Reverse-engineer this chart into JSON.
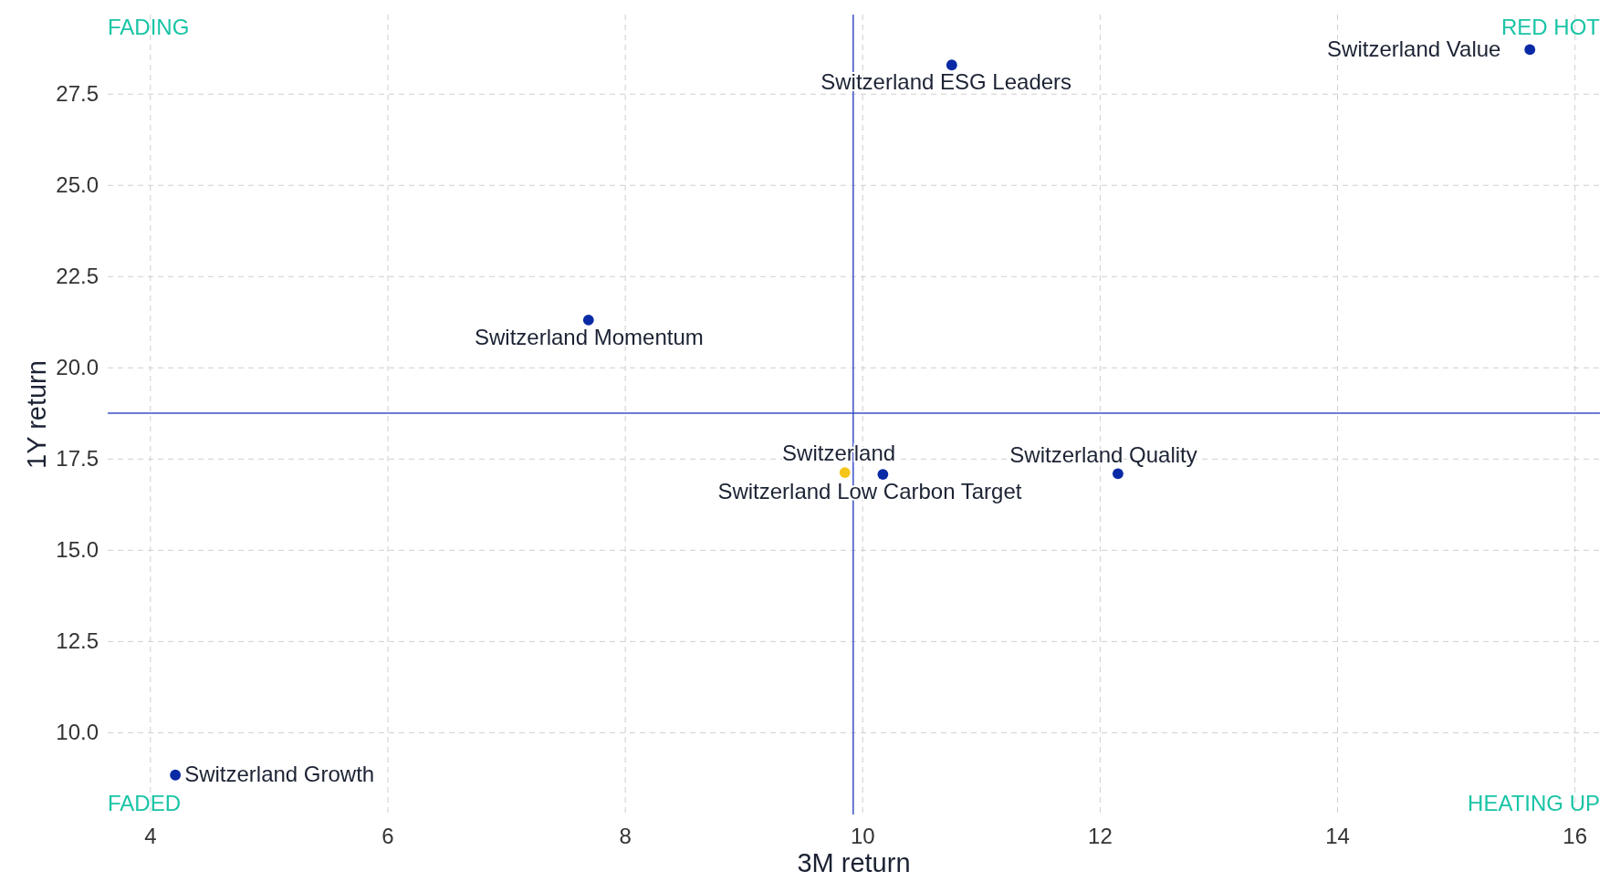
{
  "chart_data": {
    "type": "scatter",
    "xlabel": "3M return",
    "ylabel": "1Y return",
    "xlim": [
      3.64,
      16.21
    ],
    "ylim": [
      7.76,
      29.68
    ],
    "xticks": [
      4,
      6,
      8,
      10,
      12,
      14,
      16
    ],
    "yticks": [
      {
        "value": 10,
        "label": "10.0"
      },
      {
        "value": 12.5,
        "label": "12.5"
      },
      {
        "value": 15,
        "label": "15.0"
      },
      {
        "value": 17.5,
        "label": "17.5"
      },
      {
        "value": 20,
        "label": "20.0"
      },
      {
        "value": 22.5,
        "label": "22.5"
      },
      {
        "value": 25,
        "label": "25.0"
      },
      {
        "value": 27.5,
        "label": "27.5"
      }
    ],
    "grid": true,
    "marker": "circle",
    "series": [
      {
        "color": "#0a2aa5",
        "x": [
          10.75,
          15.62,
          7.69,
          10.17,
          12.15,
          4.21
        ],
        "values": [
          28.3,
          28.72,
          21.31,
          17.08,
          17.1,
          8.84
        ]
      },
      {
        "color": "#f5c518",
        "x": [
          9.85
        ],
        "values": [
          17.13
        ]
      }
    ],
    "ref_lines": [
      {
        "axis": "x",
        "value": 9.92,
        "color": "#3a4fc8"
      },
      {
        "axis": "y",
        "value": 18.76,
        "color": "#3a4fc8"
      }
    ],
    "annotations": [
      {
        "text": "Switzerland ESG Leaders",
        "x": 10.75,
        "y": 28.3
      },
      {
        "text": "Switzerland Value",
        "x": 15.62,
        "y": 28.72
      },
      {
        "text": "Switzerland Momentum",
        "x": 7.69,
        "y": 21.31
      },
      {
        "text": "Switzerland",
        "x": 9.85,
        "y": 17.13
      },
      {
        "text": "Switzerland Low Carbon Target",
        "x": 10.17,
        "y": 17.08
      },
      {
        "text": "Switzerland Quality",
        "x": 12.15,
        "y": 17.1
      },
      {
        "text": "Switzerland Growth",
        "x": 4.21,
        "y": 8.84
      },
      "FADING",
      "RED HOT",
      "FADED",
      "HEATING UP"
    ]
  }
}
